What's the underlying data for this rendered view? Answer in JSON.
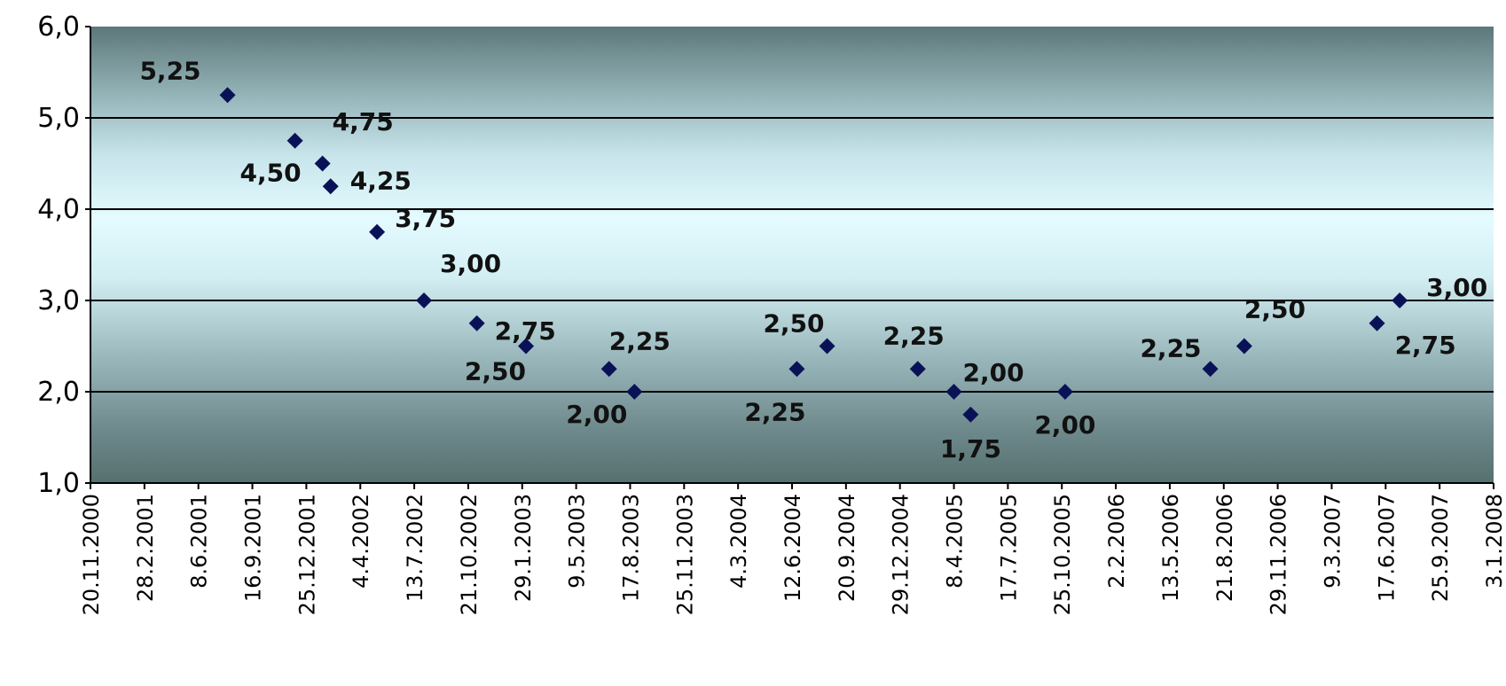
{
  "chart_data": {
    "type": "scatter",
    "title": "",
    "xlabel": "",
    "ylabel": "",
    "ylim": [
      1.0,
      6.0
    ],
    "y_ticks": [
      "1,0",
      "2,0",
      "3,0",
      "4,0",
      "5,0",
      "6,0"
    ],
    "x_range": [
      "2000-11-20",
      "2008-01-03"
    ],
    "x_tick_labels": [
      "20.11.2000",
      "28.2.2001",
      "8.6.2001",
      "16.9.2001",
      "25.12.2001",
      "4.4.2002",
      "13.7.2002",
      "21.10.2002",
      "29.1.2003",
      "9.5.2003",
      "17.8.2003",
      "25.11.2003",
      "4.3.2004",
      "12.6.2004",
      "20.9.2004",
      "29.12.2004",
      "8.4.2005",
      "17.7.2005",
      "25.10.2005",
      "2.2.2006",
      "13.5.2006",
      "21.8.2006",
      "29.11.2006",
      "9.3.2007",
      "17.6.2007",
      "25.9.2007",
      "3.1.2008"
    ],
    "grid": "horizontal",
    "legend": "none",
    "marker": "diamond",
    "marker_color": "#0a1257",
    "series": [
      {
        "points": [
          {
            "x": "2001-08-01",
            "y": 5.25,
            "label": "5,25"
          },
          {
            "x": "2001-12-04",
            "y": 4.75,
            "label": "4,75"
          },
          {
            "x": "2002-01-24",
            "y": 4.5,
            "label": "4,50"
          },
          {
            "x": "2002-02-08",
            "y": 4.25,
            "label": "4,25"
          },
          {
            "x": "2002-05-05",
            "y": 3.75,
            "label": "3,75"
          },
          {
            "x": "2002-07-31",
            "y": 3.0,
            "label": "3,00"
          },
          {
            "x": "2002-11-06",
            "y": 2.75,
            "label": "2,75"
          },
          {
            "x": "2003-02-05",
            "y": 2.5,
            "label": "2,50"
          },
          {
            "x": "2003-07-09",
            "y": 2.25,
            "label": "2,25"
          },
          {
            "x": "2003-08-25",
            "y": 2.0,
            "label": "2,00"
          },
          {
            "x": "2004-06-21",
            "y": 2.25,
            "label": "2,25"
          },
          {
            "x": "2004-08-16",
            "y": 2.5,
            "label": "2,50"
          },
          {
            "x": "2005-01-31",
            "y": 2.25,
            "label": "2,25"
          },
          {
            "x": "2005-04-08",
            "y": 2.0,
            "label": "2,00"
          },
          {
            "x": "2005-05-09",
            "y": 1.75,
            "label": "1,75"
          },
          {
            "x": "2005-10-31",
            "y": 2.0,
            "label": "2,00"
          },
          {
            "x": "2006-07-27",
            "y": 2.25,
            "label": "2,25"
          },
          {
            "x": "2006-09-28",
            "y": 2.5,
            "label": "2,50"
          },
          {
            "x": "2007-06-01",
            "y": 2.75,
            "label": "2,75"
          },
          {
            "x": "2007-07-13",
            "y": 3.0,
            "label": "3,00"
          }
        ]
      }
    ]
  }
}
